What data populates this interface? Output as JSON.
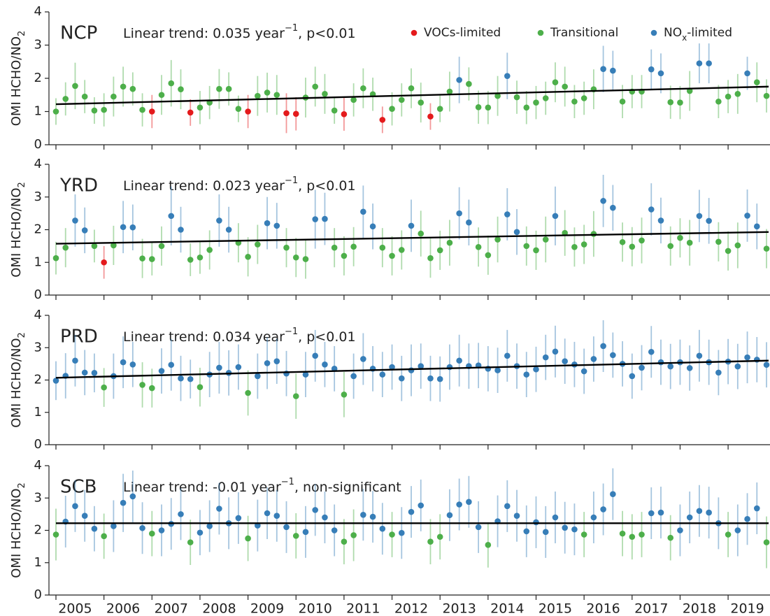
{
  "chart_data": [
    {
      "type": "scatter",
      "title": "NCP",
      "annotation": {
        "text": "Linear trend: 0.035 year",
        "sup": "−1",
        "tail": ", p<0.01"
      },
      "ylabel": {
        "text": "OMI HCHO/NO",
        "sub": "2"
      },
      "legend": [
        {
          "name": "VOCs-limited",
          "color": "#e41a1c"
        },
        {
          "name": "Transitional",
          "color": "#4daf4a"
        },
        {
          "name": "NO",
          "sub": "x",
          "tail": "-limited",
          "color": "#377eb8"
        }
      ],
      "values": [
        1.0,
        1.38,
        1.77,
        1.45,
        1.03,
        1.05,
        1.45,
        1.75,
        1.68,
        1.05,
        1.0,
        1.5,
        1.85,
        1.67,
        0.97,
        1.12,
        1.27,
        1.68,
        1.68,
        1.08,
        1.0,
        1.47,
        1.57,
        1.5,
        0.95,
        0.93,
        1.42,
        1.75,
        1.53,
        1.03,
        0.92,
        1.35,
        1.7,
        1.52,
        0.75,
        1.08,
        1.35,
        1.7,
        1.27,
        0.85,
        1.08,
        1.6,
        1.95,
        1.83,
        1.13,
        1.12,
        1.47,
        2.07,
        1.43,
        1.12,
        1.27,
        1.4,
        1.88,
        1.75,
        1.3,
        1.4,
        1.67,
        2.28,
        2.23,
        1.3,
        1.6,
        1.6,
        2.27,
        2.15,
        1.28,
        1.27,
        1.62,
        2.45,
        2.45,
        1.3,
        1.45,
        1.53,
        2.15,
        1.88,
        1.47
      ],
      "errors": [
        0.4,
        0.5,
        0.7,
        0.5,
        0.4,
        0.5,
        0.6,
        0.6,
        0.5,
        0.5,
        0.5,
        0.6,
        0.7,
        0.6,
        0.4,
        0.5,
        0.5,
        0.6,
        0.5,
        0.4,
        0.5,
        0.6,
        0.6,
        0.6,
        0.6,
        0.5,
        0.6,
        0.6,
        0.6,
        0.4,
        0.5,
        0.5,
        0.6,
        0.5,
        0.4,
        0.5,
        0.5,
        0.6,
        0.6,
        0.4,
        0.4,
        0.6,
        0.7,
        0.5,
        0.5,
        0.5,
        0.6,
        0.7,
        0.5,
        0.5,
        0.5,
        0.5,
        0.6,
        0.6,
        0.5,
        0.5,
        0.6,
        0.7,
        0.6,
        0.5,
        0.5,
        0.5,
        0.6,
        0.6,
        0.5,
        0.5,
        0.6,
        0.6,
        0.6,
        0.5,
        0.5,
        0.6,
        0.5,
        0.6,
        0.5
      ],
      "classes": [
        1,
        1,
        1,
        1,
        1,
        1,
        1,
        1,
        1,
        1,
        0,
        1,
        1,
        1,
        0,
        1,
        1,
        1,
        1,
        1,
        0,
        1,
        1,
        1,
        0,
        0,
        1,
        1,
        1,
        1,
        0,
        1,
        1,
        1,
        0,
        1,
        1,
        1,
        1,
        0,
        1,
        1,
        2,
        1,
        1,
        1,
        1,
        2,
        1,
        1,
        1,
        1,
        1,
        1,
        1,
        1,
        1,
        2,
        2,
        1,
        1,
        1,
        2,
        2,
        1,
        1,
        1,
        2,
        2,
        1,
        1,
        1,
        2,
        1,
        1
      ],
      "trend": [
        1.22,
        1.75
      ],
      "ylim": [
        0,
        4
      ],
      "yticks": [
        0,
        1,
        2,
        3,
        4
      ]
    },
    {
      "type": "scatter",
      "title": "YRD",
      "annotation": {
        "text": "Linear trend: 0.023 year",
        "sup": "−1",
        "tail": ", p<0.01"
      },
      "ylabel": {
        "text": "OMI HCHO/NO",
        "sub": "2"
      },
      "values": [
        1.13,
        1.45,
        2.28,
        1.98,
        1.5,
        1.0,
        1.52,
        2.08,
        2.07,
        1.12,
        1.1,
        1.5,
        2.42,
        2.0,
        1.08,
        1.15,
        1.38,
        2.28,
        2.0,
        1.6,
        1.17,
        1.55,
        2.2,
        2.12,
        1.45,
        1.15,
        1.1,
        2.32,
        2.33,
        1.45,
        1.2,
        1.48,
        2.55,
        2.1,
        1.45,
        1.2,
        1.38,
        2.12,
        1.88,
        1.13,
        1.37,
        1.6,
        2.5,
        2.22,
        1.47,
        1.22,
        1.7,
        2.47,
        1.93,
        1.5,
        1.37,
        1.7,
        2.42,
        1.9,
        1.47,
        1.55,
        1.87,
        2.88,
        2.67,
        1.62,
        1.48,
        1.67,
        2.62,
        2.28,
        1.5,
        1.75,
        1.6,
        2.42,
        2.27,
        1.63,
        1.35,
        1.52,
        2.43,
        2.1,
        1.42
      ],
      "errors": [
        0.5,
        0.6,
        0.8,
        0.7,
        0.5,
        0.5,
        0.6,
        0.8,
        0.7,
        0.6,
        0.5,
        0.6,
        0.9,
        0.7,
        0.5,
        0.5,
        0.6,
        0.8,
        0.7,
        0.6,
        0.6,
        0.6,
        0.8,
        0.7,
        0.6,
        0.6,
        0.6,
        0.9,
        0.8,
        0.6,
        0.6,
        0.6,
        0.8,
        0.7,
        0.6,
        0.6,
        0.6,
        0.8,
        0.7,
        0.6,
        0.6,
        0.7,
        0.8,
        0.7,
        0.6,
        0.6,
        0.7,
        0.8,
        0.7,
        0.6,
        0.6,
        0.7,
        0.9,
        0.7,
        0.6,
        0.6,
        0.7,
        0.8,
        0.7,
        0.6,
        0.6,
        0.7,
        0.8,
        0.7,
        0.6,
        0.6,
        0.7,
        0.8,
        0.7,
        0.6,
        0.6,
        0.7,
        0.8,
        0.7,
        0.6
      ],
      "classes": [
        1,
        1,
        2,
        2,
        1,
        0,
        1,
        2,
        2,
        1,
        1,
        1,
        2,
        2,
        1,
        1,
        1,
        2,
        2,
        1,
        1,
        1,
        2,
        2,
        1,
        1,
        1,
        2,
        2,
        1,
        1,
        1,
        2,
        2,
        1,
        1,
        1,
        2,
        1,
        1,
        1,
        1,
        2,
        2,
        1,
        1,
        1,
        2,
        2,
        1,
        1,
        1,
        2,
        1,
        1,
        1,
        1,
        2,
        2,
        1,
        1,
        1,
        2,
        2,
        1,
        1,
        1,
        2,
        2,
        1,
        1,
        1,
        2,
        2,
        1
      ],
      "trend": [
        1.57,
        1.93
      ],
      "ylim": [
        0,
        4
      ],
      "yticks": [
        0,
        1,
        2,
        3,
        4
      ]
    },
    {
      "type": "scatter",
      "title": "PRD",
      "annotation": {
        "text": "Linear trend: 0.034 year",
        "sup": "−1",
        "tail": ", p<0.01"
      },
      "ylabel": {
        "text": "OMI HCHO/NO",
        "sub": "2"
      },
      "values": [
        1.98,
        2.13,
        2.6,
        2.23,
        2.22,
        1.77,
        2.12,
        2.55,
        2.48,
        1.85,
        1.75,
        2.28,
        2.47,
        2.05,
        2.03,
        1.78,
        2.17,
        2.38,
        2.22,
        2.4,
        1.6,
        2.12,
        2.52,
        2.58,
        2.2,
        1.5,
        2.17,
        2.75,
        2.48,
        2.35,
        1.55,
        2.12,
        2.65,
        2.35,
        2.17,
        2.4,
        2.05,
        2.3,
        2.43,
        2.05,
        2.03,
        2.4,
        2.6,
        2.43,
        2.45,
        2.35,
        2.3,
        2.75,
        2.43,
        2.17,
        2.33,
        2.7,
        2.88,
        2.58,
        2.48,
        2.27,
        2.65,
        3.05,
        2.77,
        2.5,
        2.12,
        2.38,
        2.87,
        2.55,
        2.42,
        2.55,
        2.37,
        2.75,
        2.55,
        2.23,
        2.57,
        2.42,
        2.7,
        2.63,
        2.47
      ],
      "errors": [
        0.6,
        0.7,
        0.8,
        0.7,
        0.6,
        0.6,
        0.7,
        0.8,
        0.7,
        0.7,
        0.6,
        0.7,
        0.8,
        0.7,
        0.6,
        0.6,
        0.7,
        0.8,
        0.7,
        0.7,
        0.7,
        0.7,
        0.8,
        0.7,
        0.7,
        0.7,
        0.7,
        0.8,
        0.7,
        0.7,
        0.7,
        0.7,
        0.8,
        0.7,
        0.7,
        0.7,
        0.7,
        0.8,
        0.7,
        0.7,
        0.7,
        0.7,
        0.8,
        0.7,
        0.7,
        0.7,
        0.7,
        0.8,
        0.7,
        0.7,
        0.7,
        0.7,
        0.8,
        0.7,
        0.7,
        0.7,
        0.7,
        0.8,
        0.7,
        0.7,
        0.7,
        0.7,
        0.8,
        0.7,
        0.7,
        0.7,
        0.7,
        0.8,
        0.7,
        0.7,
        0.7,
        0.7,
        0.8,
        0.7,
        0.7
      ],
      "classes": [
        2,
        2,
        2,
        2,
        2,
        1,
        2,
        2,
        2,
        1,
        1,
        2,
        2,
        2,
        2,
        1,
        2,
        2,
        2,
        2,
        1,
        2,
        2,
        2,
        2,
        1,
        2,
        2,
        2,
        2,
        1,
        2,
        2,
        2,
        2,
        2,
        2,
        2,
        2,
        2,
        2,
        2,
        2,
        2,
        2,
        2,
        2,
        2,
        2,
        2,
        2,
        2,
        2,
        2,
        2,
        2,
        2,
        2,
        2,
        2,
        2,
        2,
        2,
        2,
        2,
        2,
        2,
        2,
        2,
        2,
        2,
        2,
        2,
        2,
        2
      ],
      "trend": [
        2.07,
        2.6
      ],
      "ylim": [
        0,
        4
      ],
      "yticks": [
        0,
        1,
        2,
        3,
        4
      ]
    },
    {
      "type": "scatter",
      "title": "SCB",
      "annotation": {
        "text": "Linear trend: -0.01 year",
        "sup": "−1",
        "tail": ", non-significant"
      },
      "ylabel": {
        "text": "OMI HCHO/NO",
        "sub": "2"
      },
      "categories": [
        null,
        null,
        "2005",
        null,
        null,
        null,
        null,
        "2006",
        null,
        null,
        null,
        null,
        "2007",
        null,
        null,
        null,
        null,
        "2008",
        null,
        null,
        null,
        null,
        "2009",
        null,
        null,
        null,
        null,
        "2010",
        null,
        null,
        null,
        null,
        "2011",
        null,
        null,
        null,
        null,
        "2012",
        null,
        null,
        null,
        null,
        "2013",
        null,
        null,
        null,
        null,
        "2014",
        null,
        null,
        null,
        null,
        "2015",
        null,
        null,
        null,
        null,
        "2016",
        null,
        null,
        null,
        null,
        "2017",
        null,
        null,
        null,
        null,
        "2018",
        null,
        null,
        null,
        null,
        "2019",
        null,
        null
      ],
      "values": [
        1.87,
        2.27,
        2.75,
        2.45,
        2.05,
        1.82,
        2.13,
        2.85,
        3.05,
        2.07,
        1.9,
        2.0,
        2.2,
        2.5,
        1.63,
        1.93,
        2.13,
        2.67,
        2.22,
        2.38,
        1.75,
        2.15,
        2.53,
        2.45,
        2.1,
        1.83,
        1.95,
        2.63,
        2.4,
        2.0,
        1.65,
        1.85,
        2.48,
        2.42,
        2.05,
        1.87,
        1.92,
        2.57,
        2.77,
        1.65,
        1.8,
        2.47,
        2.8,
        2.88,
        2.1,
        1.55,
        2.28,
        2.75,
        2.45,
        1.97,
        2.25,
        1.95,
        2.4,
        2.08,
        2.03,
        1.87,
        2.4,
        2.65,
        3.12,
        1.9,
        1.8,
        1.87,
        2.53,
        2.55,
        1.77,
        2.0,
        2.4,
        2.6,
        2.55,
        2.22,
        1.87,
        2.0,
        2.35,
        2.68,
        1.63
      ],
      "errors": [
        0.8,
        0.8,
        0.8,
        0.8,
        0.7,
        0.7,
        0.8,
        0.9,
        0.8,
        0.8,
        0.7,
        0.8,
        0.8,
        0.8,
        0.7,
        0.7,
        0.8,
        0.8,
        0.8,
        0.8,
        0.7,
        0.8,
        0.8,
        0.8,
        0.8,
        0.7,
        0.8,
        0.8,
        0.8,
        0.8,
        0.7,
        0.8,
        0.8,
        0.8,
        0.8,
        0.7,
        0.8,
        0.8,
        0.8,
        0.7,
        0.7,
        0.8,
        0.8,
        0.8,
        0.8,
        0.7,
        0.8,
        0.8,
        0.8,
        0.8,
        0.8,
        0.8,
        0.8,
        0.8,
        0.8,
        0.7,
        0.8,
        0.8,
        0.8,
        0.7,
        0.7,
        0.7,
        0.8,
        0.8,
        0.7,
        0.8,
        0.8,
        0.8,
        0.8,
        0.8,
        0.7,
        0.8,
        0.8,
        0.8,
        0.8
      ],
      "classes": [
        1,
        2,
        2,
        2,
        2,
        1,
        2,
        2,
        2,
        2,
        1,
        2,
        2,
        2,
        1,
        2,
        2,
        2,
        2,
        2,
        1,
        2,
        2,
        2,
        2,
        1,
        2,
        2,
        2,
        2,
        1,
        1,
        2,
        2,
        2,
        1,
        2,
        2,
        2,
        1,
        1,
        2,
        2,
        2,
        2,
        1,
        2,
        2,
        2,
        2,
        2,
        2,
        2,
        2,
        2,
        1,
        2,
        2,
        2,
        1,
        1,
        1,
        2,
        2,
        1,
        2,
        2,
        2,
        2,
        2,
        1,
        2,
        2,
        2,
        1
      ],
      "trend": [
        2.22,
        2.22
      ],
      "ylim": [
        0,
        4
      ],
      "yticks": [
        0,
        1,
        2,
        3,
        4
      ]
    }
  ]
}
